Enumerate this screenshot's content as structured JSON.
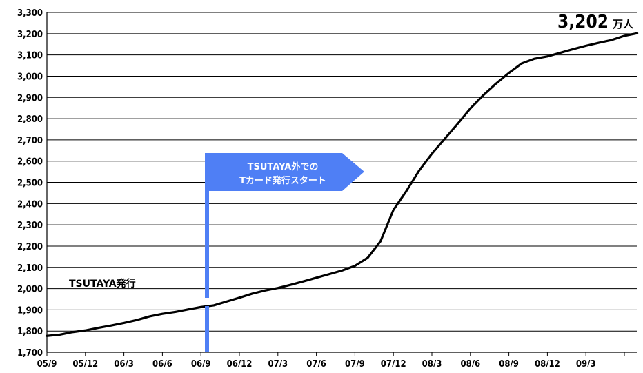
{
  "chart_data": {
    "type": "line",
    "title": "",
    "xlabel": "",
    "ylabel": "",
    "ylim": [
      1700,
      3300
    ],
    "y_ticks": [
      "1,700",
      "1,800",
      "1,900",
      "2,000",
      "2,100",
      "2,200",
      "2,300",
      "2,400",
      "2,500",
      "2,600",
      "2,700",
      "2,800",
      "2,900",
      "3,000",
      "3,100",
      "3,200",
      "3,300"
    ],
    "x_ticks": [
      "05/9",
      "05/12",
      "06/3",
      "06/6",
      "06/9",
      "06/12",
      "07/3",
      "07/6",
      "07/9",
      "07/12",
      "08/3",
      "08/6",
      "08/9",
      "08/12",
      "09/3"
    ],
    "grid": true,
    "series": [
      {
        "name": "",
        "x": [
          0,
          1,
          2,
          3,
          4,
          5,
          6,
          7,
          8,
          9,
          10,
          11,
          12,
          13,
          14,
          15,
          16,
          17,
          18,
          19,
          20,
          21,
          22,
          23,
          24,
          25,
          26,
          27,
          28,
          29,
          30,
          31,
          32,
          33,
          34,
          35,
          36,
          37,
          38,
          39,
          40,
          41,
          42,
          43,
          44,
          45,
          46
        ],
        "values": [
          1777,
          1783,
          1795,
          1803,
          1815,
          1826,
          1838,
          1852,
          1869,
          1881,
          1890,
          1902,
          1913,
          1921,
          1939,
          1957,
          1976,
          1991,
          2003,
          2018,
          2034,
          2051,
          2068,
          2085,
          2107,
          2145,
          2223,
          2370,
          2458,
          2555,
          2635,
          2705,
          2775,
          2848,
          2910,
          2965,
          3015,
          3060,
          3082,
          3093,
          3110,
          3127,
          3143,
          3157,
          3170,
          3190,
          3202
        ]
      }
    ],
    "annotations": {
      "start_label": "TSUTAYA発行",
      "callout_line1": "TSUTAYA外での",
      "callout_line2": "Tカード発行スタート",
      "end_value": "3,202",
      "end_unit": "万人"
    },
    "colors": {
      "line": "#000000",
      "callout": "#4f7ff5",
      "grid": "#000000"
    }
  }
}
